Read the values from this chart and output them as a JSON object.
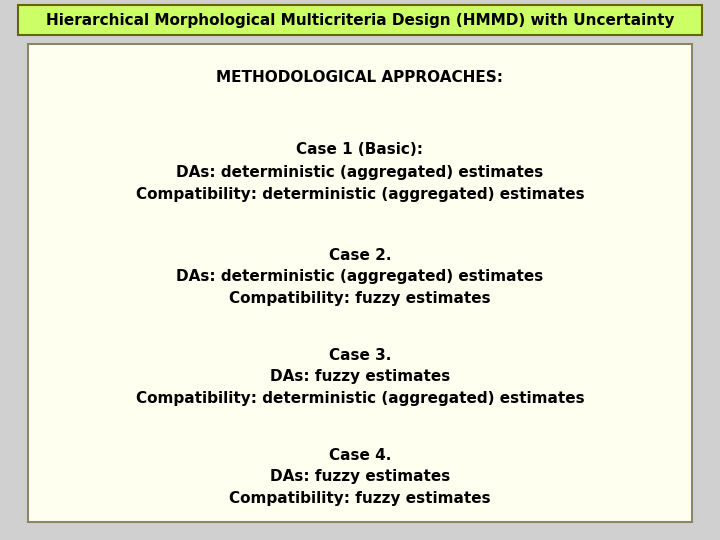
{
  "title": "Hierarchical Morphological Multicriteria Design (HMMD) with Uncertainty",
  "title_bg": "#CCFF66",
  "title_border": "#666600",
  "main_bg": "#FFFFF0",
  "main_border": "#888866",
  "fig_bg": "#D0D0D0",
  "title_fontsize": 11,
  "body_fontsize": 11,
  "heading": "METHODOLOGICAL APPROACHES:",
  "cases": [
    {
      "title": "Case 1 (Basic):",
      "lines": [
        "DAs: deterministic (aggregated) estimates",
        "Compatibility: deterministic (aggregated) estimates"
      ]
    },
    {
      "title": "Case 2.",
      "lines": [
        "DAs: deterministic (aggregated) estimates",
        "Compatibility: fuzzy estimates"
      ]
    },
    {
      "title": "Case 3.",
      "lines": [
        "DAs: fuzzy estimates",
        "Compatibility: deterministic (aggregated) estimates"
      ]
    },
    {
      "title": "Case 4.",
      "lines": [
        "DAs: fuzzy estimates",
        "Compatibility: fuzzy estimates"
      ]
    }
  ]
}
